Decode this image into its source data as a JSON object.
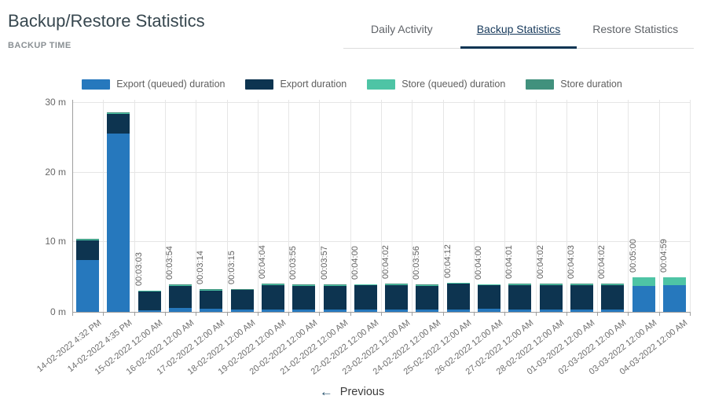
{
  "header": {
    "title": "Backup/Restore Statistics",
    "subtitle": "BACKUP TIME"
  },
  "tabs": [
    {
      "label": "Daily Activity",
      "active": false
    },
    {
      "label": "Backup Statistics",
      "active": true
    },
    {
      "label": "Restore Statistics",
      "active": false
    }
  ],
  "pagination": {
    "previous_label": "Previous",
    "previous_icon": "←"
  },
  "colors": {
    "export_queued": "#2678bd",
    "export": "#0d3450",
    "store_queued": "#4ec4a5",
    "store": "#41917d",
    "active_tab": "#0d3553"
  },
  "chart_data": {
    "type": "bar",
    "stacked": true,
    "title": "BACKUP TIME",
    "unit": "minutes",
    "ylim": [
      0,
      30
    ],
    "y_ticks": [
      {
        "value": 0,
        "label": "0 m"
      },
      {
        "value": 10,
        "label": "10 m"
      },
      {
        "value": 20,
        "label": "20 m"
      },
      {
        "value": 30,
        "label": "30 m"
      }
    ],
    "grid": true,
    "legend_position": "top",
    "categories": [
      "14-02-2022 4:32 PM",
      "14-02-2022 4:35 PM",
      "15-02-2022 12:00 AM",
      "16-02-2022 12:00 AM",
      "17-02-2022 12:00 AM",
      "18-02-2022 12:00 AM",
      "19-02-2022 12:00 AM",
      "20-02-2022 12:00 AM",
      "21-02-2022 12:00 AM",
      "22-02-2022 12:00 AM",
      "23-02-2022 12:00 AM",
      "24-02-2022 12:00 AM",
      "25-02-2022 12:00 AM",
      "26-02-2022 12:00 AM",
      "27-02-2022 12:00 AM",
      "28-02-2022 12:00 AM",
      "01-03-2022 12:00 AM",
      "02-03-2022 12:00 AM",
      "03-03-2022 12:00 AM",
      "04-03-2022 12:00 AM"
    ],
    "bar_total_labels": [
      "",
      "",
      "00:03:03",
      "00:03:54",
      "00:03:14",
      "00:03:15",
      "00:04:04",
      "00:03:55",
      "00:03:57",
      "00:04:00",
      "00:04:02",
      "00:03:56",
      "00:04:12",
      "00:04:00",
      "00:04:01",
      "00:04:02",
      "00:04:03",
      "00:04:02",
      "00:05:00",
      "00:04:59"
    ],
    "series": [
      {
        "name": "Export (queued) duration",
        "color": "#2678bd",
        "values": [
          7.48,
          25.55,
          0.25,
          0.55,
          0.5,
          0.3,
          0.35,
          0.3,
          0.35,
          0.35,
          0.3,
          0.35,
          0.3,
          0.4,
          0.35,
          0.35,
          0.3,
          0.35,
          3.75,
          3.85
        ]
      },
      {
        "name": "Export duration",
        "color": "#0d3450",
        "values": [
          2.83,
          2.85,
          2.67,
          3.22,
          2.6,
          2.82,
          3.52,
          3.44,
          3.42,
          3.45,
          3.55,
          3.4,
          3.72,
          3.42,
          3.49,
          3.5,
          3.57,
          3.5,
          0.02,
          0.02
        ]
      },
      {
        "name": "Store (queued) duration",
        "color": "#4ec4a5",
        "values": [
          0.1,
          0.15,
          0.08,
          0.08,
          0.08,
          0.08,
          0.12,
          0.12,
          0.12,
          0.12,
          0.12,
          0.12,
          0.12,
          0.12,
          0.12,
          0.12,
          0.12,
          0.12,
          1.18,
          1.06
        ]
      },
      {
        "name": "Store duration",
        "color": "#41917d",
        "values": [
          0.07,
          0.08,
          0.05,
          0.05,
          0.05,
          0.05,
          0.08,
          0.06,
          0.06,
          0.08,
          0.06,
          0.06,
          0.06,
          0.06,
          0.06,
          0.06,
          0.06,
          0.06,
          0.05,
          0.05
        ]
      }
    ]
  }
}
